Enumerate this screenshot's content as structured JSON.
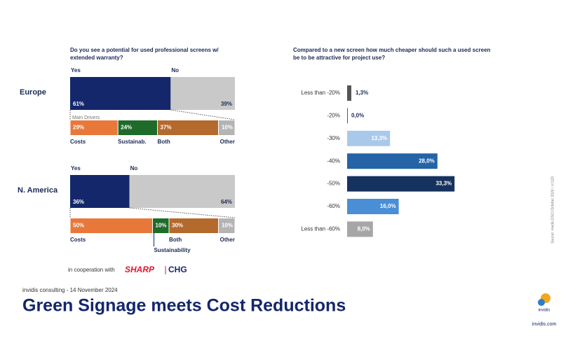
{
  "chart_data": [
    {
      "type": "split-bar",
      "title": "Do you see a potential for used professional screens w/ extended warranty?",
      "groups": [
        {
          "name": "Europe",
          "categories": [
            "Yes",
            "No"
          ],
          "values": [
            61,
            39
          ],
          "value_labels": [
            "61%",
            "39%"
          ],
          "colors": [
            "#14276b",
            "#c9c9c9"
          ],
          "drivers": {
            "title": "Main Drivers",
            "categories": [
              "Costs",
              "Sustainab.",
              "Both",
              "Other"
            ],
            "values": [
              29,
              24,
              37,
              10
            ],
            "value_labels": [
              "29%",
              "24%",
              "37%",
              "10%"
            ],
            "colors": [
              "#e8783a",
              "#1f6b2a",
              "#b36a2c",
              "#b4b4b4"
            ]
          }
        },
        {
          "name": "N. America",
          "categories": [
            "Yes",
            "No"
          ],
          "values": [
            36,
            64
          ],
          "value_labels": [
            "36%",
            "64%"
          ],
          "colors": [
            "#14276b",
            "#c9c9c9"
          ],
          "drivers": {
            "categories": [
              "Costs",
              "Sustainability",
              "Both",
              "Other"
            ],
            "values": [
              50,
              10,
              30,
              10
            ],
            "value_labels": [
              "50%",
              "10%",
              "30%",
              "10%"
            ],
            "colors": [
              "#e8783a",
              "#1f6b2a",
              "#b36a2c",
              "#b4b4b4"
            ]
          }
        }
      ]
    },
    {
      "type": "bar",
      "orientation": "horizontal",
      "title": "Compared to a new screen how much cheaper should such a used screen be to be attractive for project use?",
      "categories": [
        "Less than -20%",
        "-20%",
        "-30%",
        "-40%",
        "-50%",
        "-60%",
        "Less than -60%"
      ],
      "values": [
        1.3,
        0.0,
        13.3,
        28.0,
        33.3,
        16.0,
        8.0
      ],
      "value_labels": [
        "1,3%",
        "0,0%",
        "13,3%",
        "28,0%",
        "33,3%",
        "16,0%",
        "8,0%"
      ],
      "colors": [
        "#555555",
        "#555555",
        "#a9c9ea",
        "#2463a6",
        "#16325e",
        "#4a8fd6",
        "#a6a6a6"
      ]
    }
  ],
  "partner": {
    "prefix": "in cooperation with",
    "logos": [
      "SHARP",
      "CHG"
    ]
  },
  "footer": {
    "date": "invidis consulting - 14 November 2024",
    "title": "Green Signage meets Cost Reductions",
    "brand": "invidis",
    "url": "invidis.com"
  },
  "source": "Source: invidis DSCI October 2024 / n=120"
}
